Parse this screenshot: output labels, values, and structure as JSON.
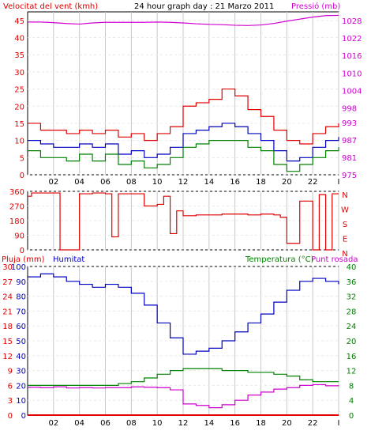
{
  "header": {
    "wind_label": "Velocitat del vent (kmh)",
    "title": "24 hour graph day : 21 Marzo 2011",
    "pressure_label": "Pressió (mb)"
  },
  "panel3_labels": {
    "rain": "Pluja (mm)",
    "humidity": "Humitat",
    "temperature": "Temperatura (°C)",
    "dewpoint": "Punt rosada"
  },
  "colors": {
    "wind_axis": "#e00000",
    "pressure": "#d000d0",
    "wind_avg": "#0000c0",
    "wind_gust": "#e00000",
    "wind_avg2": "#008000",
    "direction": "#e00000",
    "humidity": "#0000c0",
    "temperature": "#008000",
    "dewpoint": "#d000d0",
    "rain": "#e00000",
    "frame": "#ffffff",
    "panel_border": "#000000",
    "grid": "#c8c8c8"
  },
  "chart_data": [
    {
      "type": "line",
      "name": "wind-and-pressure",
      "x_ticks": [
        "02",
        "04",
        "06",
        "08",
        "10",
        "12",
        "14",
        "16",
        "18",
        "20",
        "22",
        "I"
      ],
      "x_range": [
        0,
        24
      ],
      "left_axis": {
        "ticks": [
          0,
          5,
          10,
          15,
          20,
          25,
          30,
          35,
          40,
          45
        ],
        "range": [
          0,
          47.5
        ]
      },
      "right_axis": {
        "ticks": [
          975,
          981,
          987,
          993,
          998,
          1004,
          1010,
          1016,
          1022,
          1028
        ],
        "range": [
          975,
          1031
        ]
      },
      "series": [
        {
          "key": "pressure",
          "axis": "right",
          "x": [
            0,
            1,
            2,
            3,
            4,
            5,
            6,
            7,
            8,
            9,
            10,
            11,
            12,
            13,
            14,
            15,
            16,
            17,
            18,
            19,
            20,
            21,
            22,
            23,
            24
          ],
          "y": [
            1027.5,
            1027.5,
            1027.3,
            1027,
            1026.8,
            1027.2,
            1027.4,
            1027.4,
            1027.4,
            1027.4,
            1027.5,
            1027.4,
            1027.2,
            1026.9,
            1026.7,
            1026.6,
            1026.4,
            1026.3,
            1026.5,
            1027,
            1027.8,
            1028.5,
            1029.2,
            1029.7,
            1029.8
          ]
        },
        {
          "key": "wind_gust",
          "axis": "left",
          "x": [
            0,
            1,
            2,
            3,
            4,
            5,
            6,
            7,
            8,
            9,
            10,
            11,
            12,
            13,
            14,
            15,
            16,
            17,
            18,
            19,
            20,
            21,
            22,
            23,
            24
          ],
          "y": [
            15,
            13,
            13,
            12,
            13,
            12,
            13,
            11,
            12,
            10,
            12,
            14,
            20,
            21,
            22,
            25,
            23,
            19,
            17,
            13,
            10,
            9,
            12,
            14,
            15
          ]
        },
        {
          "key": "wind_avg",
          "axis": "left",
          "x": [
            0,
            1,
            2,
            3,
            4,
            5,
            6,
            7,
            8,
            9,
            10,
            11,
            12,
            13,
            14,
            15,
            16,
            17,
            18,
            19,
            20,
            21,
            22,
            23,
            24
          ],
          "y": [
            10,
            9,
            8,
            8,
            9,
            8,
            9,
            6,
            7,
            5,
            6,
            8,
            12,
            13,
            14,
            15,
            14,
            12,
            10,
            7,
            4,
            5,
            8,
            10,
            11
          ]
        },
        {
          "key": "wind_avg2",
          "axis": "left",
          "x": [
            0,
            1,
            2,
            3,
            4,
            5,
            6,
            7,
            8,
            9,
            10,
            11,
            12,
            13,
            14,
            15,
            16,
            17,
            18,
            19,
            20,
            21,
            22,
            23,
            24
          ],
          "y": [
            7,
            5,
            5,
            4,
            6,
            4,
            6,
            3,
            4,
            2,
            3,
            5,
            8,
            9,
            10,
            10,
            10,
            8,
            7,
            3,
            1,
            3,
            5,
            7,
            8
          ]
        }
      ]
    },
    {
      "type": "line",
      "name": "wind-direction",
      "x_ticks": [],
      "left_axis": {
        "ticks": [
          0,
          90,
          180,
          270,
          360
        ],
        "range": [
          0,
          360
        ]
      },
      "right_axis_labels": [
        "N",
        "W",
        "S",
        "E",
        "N"
      ],
      "series": [
        {
          "key": "direction",
          "x": [
            0,
            0.3,
            2,
            2.5,
            4,
            5,
            6,
            6.5,
            7,
            8.5,
            9,
            10,
            10.5,
            11,
            11.5,
            12,
            13,
            14,
            15,
            16,
            17,
            18,
            19,
            19.5,
            20,
            21,
            22,
            22.5,
            23,
            23.5,
            24
          ],
          "y": [
            330,
            350,
            350,
            0,
            345,
            350,
            345,
            80,
            345,
            345,
            270,
            280,
            330,
            100,
            240,
            210,
            215,
            215,
            220,
            220,
            215,
            220,
            215,
            200,
            40,
            300,
            0,
            340,
            0,
            345,
            345
          ]
        }
      ]
    },
    {
      "type": "line",
      "name": "humidity-temperature",
      "x_ticks": [
        "02",
        "04",
        "06",
        "08",
        "10",
        "12",
        "14",
        "16",
        "18",
        "20",
        "22",
        "I"
      ],
      "left_axis": {
        "ticks": [
          0,
          10,
          20,
          30,
          40,
          50,
          60,
          70,
          80,
          90,
          100
        ],
        "range": [
          0,
          100
        ]
      },
      "left_axis_inner": {
        "ticks": [
          0,
          3,
          6,
          9,
          12,
          15,
          18,
          21,
          24,
          27,
          30
        ],
        "range": [
          0,
          30
        ]
      },
      "right_axis": {
        "ticks": [
          0,
          4,
          8,
          12,
          16,
          20,
          24,
          28,
          32,
          36,
          40
        ],
        "range": [
          0,
          40
        ]
      },
      "series": [
        {
          "key": "humidity",
          "axis": "left",
          "x": [
            0,
            1,
            2,
            3,
            4,
            5,
            6,
            7,
            8,
            9,
            10,
            11,
            12,
            13,
            14,
            15,
            16,
            17,
            18,
            19,
            20,
            21,
            22,
            23,
            24
          ],
          "y": [
            93,
            95,
            93,
            90,
            88,
            86,
            88,
            86,
            82,
            74,
            62,
            52,
            41,
            43,
            45,
            50,
            56,
            62,
            68,
            76,
            84,
            90,
            92,
            90,
            88
          ]
        },
        {
          "key": "temperature",
          "axis": "right",
          "x": [
            0,
            1,
            2,
            3,
            4,
            5,
            6,
            7,
            8,
            9,
            10,
            11,
            12,
            13,
            14,
            15,
            16,
            17,
            18,
            19,
            20,
            21,
            22,
            23,
            24
          ],
          "y": [
            8,
            8,
            8,
            8,
            8,
            8,
            8,
            8.5,
            9,
            10,
            11,
            12,
            12.5,
            12.5,
            12.5,
            12,
            12,
            11.5,
            11.5,
            11,
            10.5,
            9.5,
            9,
            9,
            9
          ]
        },
        {
          "key": "dewpoint",
          "axis": "right",
          "x": [
            0,
            1,
            2,
            3,
            4,
            5,
            6,
            7,
            8,
            9,
            10,
            11,
            12,
            13,
            14,
            15,
            16,
            17,
            18,
            19,
            20,
            21,
            22,
            23,
            24
          ],
          "y": [
            7.5,
            7.4,
            7.6,
            7.3,
            7.4,
            7.3,
            7.4,
            7.4,
            7.6,
            7.5,
            7.4,
            6.8,
            3,
            2.6,
            2,
            2.8,
            4,
            5.4,
            6.2,
            7,
            7.4,
            8,
            8.2,
            7.9,
            7.8
          ]
        },
        {
          "key": "rain",
          "axis": "left_inner",
          "x": [
            0,
            24
          ],
          "y": [
            0,
            0
          ]
        }
      ]
    }
  ]
}
